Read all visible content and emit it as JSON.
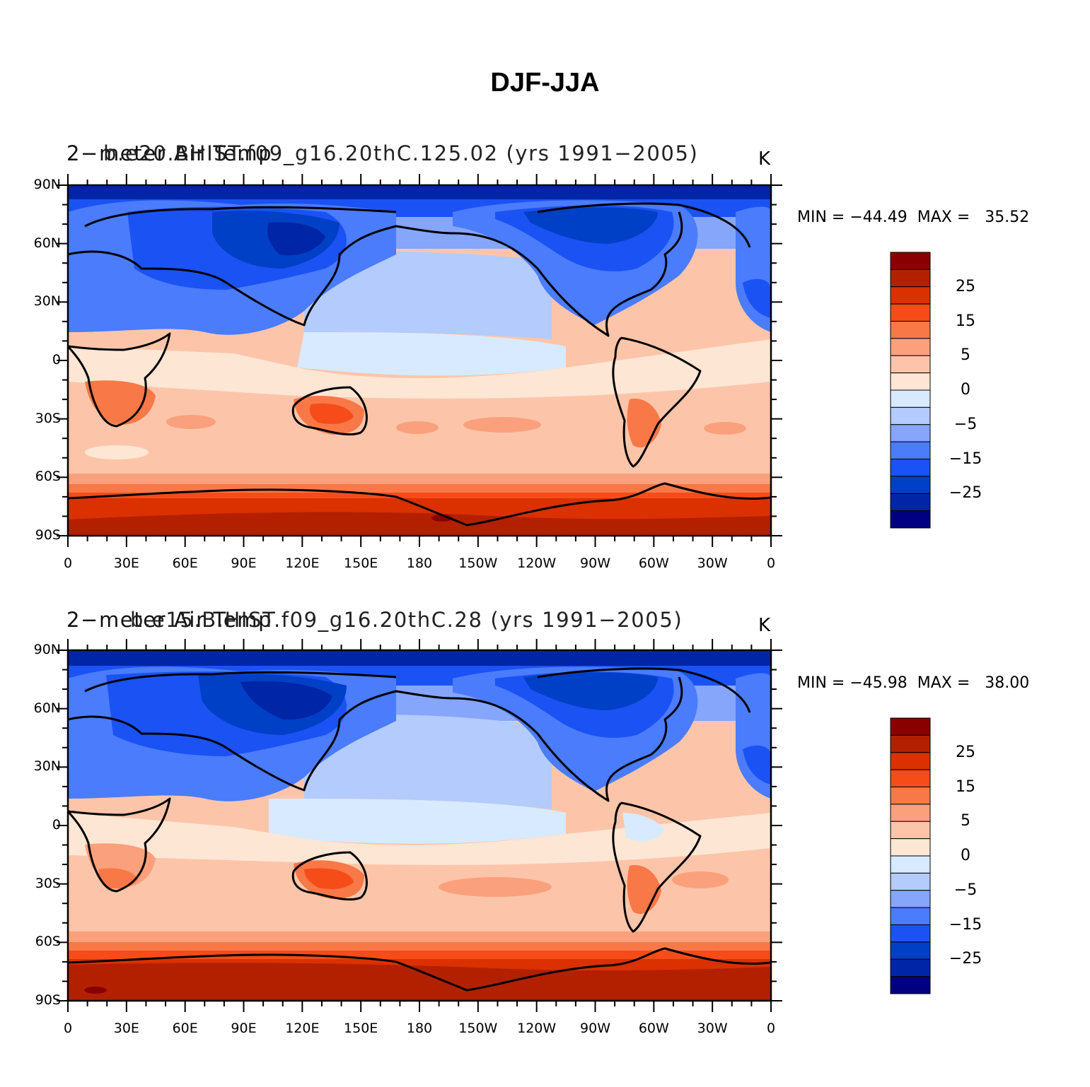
{
  "title": "DJF-JJA",
  "colorbar": {
    "colors": [
      "#000080",
      "#0025A6",
      "#0040C6",
      "#1B52F4",
      "#4A7CFB",
      "#85A6FB",
      "#B3CBFD",
      "#D8EAFF",
      "#FEE6D4",
      "#FCC5AA",
      "#FBA07C",
      "#F97848",
      "#F54C19",
      "#DB3000",
      "#B32000",
      "#8A0000"
    ],
    "labels": [
      "25",
      "15",
      "5",
      "0",
      "−5",
      "−15",
      "−25"
    ]
  },
  "lat_ticks": [
    "90N",
    "60N",
    "30N",
    "0",
    "30S",
    "60S",
    "90S"
  ],
  "lon_ticks": [
    "0",
    "30E",
    "60E",
    "90E",
    "120E",
    "150E",
    "180",
    "150W",
    "120W",
    "90W",
    "60W",
    "30W",
    "0"
  ],
  "panels": [
    {
      "title_left": "2−meter Air Temp",
      "title_case": "b.e20.BHIST.f09_g16.20thC.125.02 (yrs 1991−2005)",
      "unit": "K",
      "minmax": "MIN = −44.49  MAX =   35.52"
    },
    {
      "title_left": "2−meter Air Temp",
      "title_case": "b.e15.B.HIST.f09_g16.20thC.28 (yrs 1991−2005)",
      "unit": "K",
      "minmax": "MIN = −45.98  MAX =   38.00"
    }
  ]
}
